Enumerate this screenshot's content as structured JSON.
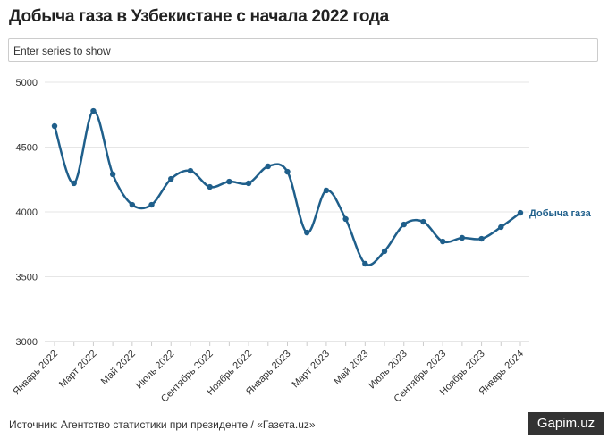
{
  "chart_data": {
    "type": "line",
    "title": "Добыча газа в Узбекистане с начала 2022 года",
    "search_placeholder": "Enter series to show",
    "source": "Источник: Агентство статистики при президенте / «Газета.uz»",
    "watermark": "Gapim.uz",
    "categories": [
      "Январь 2022",
      null,
      "Март 2022",
      null,
      "Май 2022",
      null,
      "Июль 2022",
      null,
      "Сентябрь 2022",
      null,
      "Ноябрь 2022",
      null,
      "Январь 2023",
      null,
      "Март 2023",
      null,
      "Май 2023",
      null,
      "Июль 2023",
      null,
      "Сентябрь 2023",
      null,
      "Ноябрь 2023",
      null,
      "Январь 2024"
    ],
    "series": [
      {
        "name": "Добыча газа",
        "color": "#1f5f8b",
        "values": [
          4662,
          4221,
          4779,
          4290,
          4055,
          4055,
          4255,
          4317,
          4193,
          4234,
          4221,
          4352,
          4310,
          3841,
          4166,
          3945,
          3600,
          3697,
          3903,
          3924,
          3772,
          3800,
          3793,
          3883,
          3993
        ]
      }
    ],
    "ylim": [
      3000,
      5000
    ],
    "yticks": [
      3000,
      3500,
      4000,
      4500,
      5000
    ],
    "grid": true
  }
}
